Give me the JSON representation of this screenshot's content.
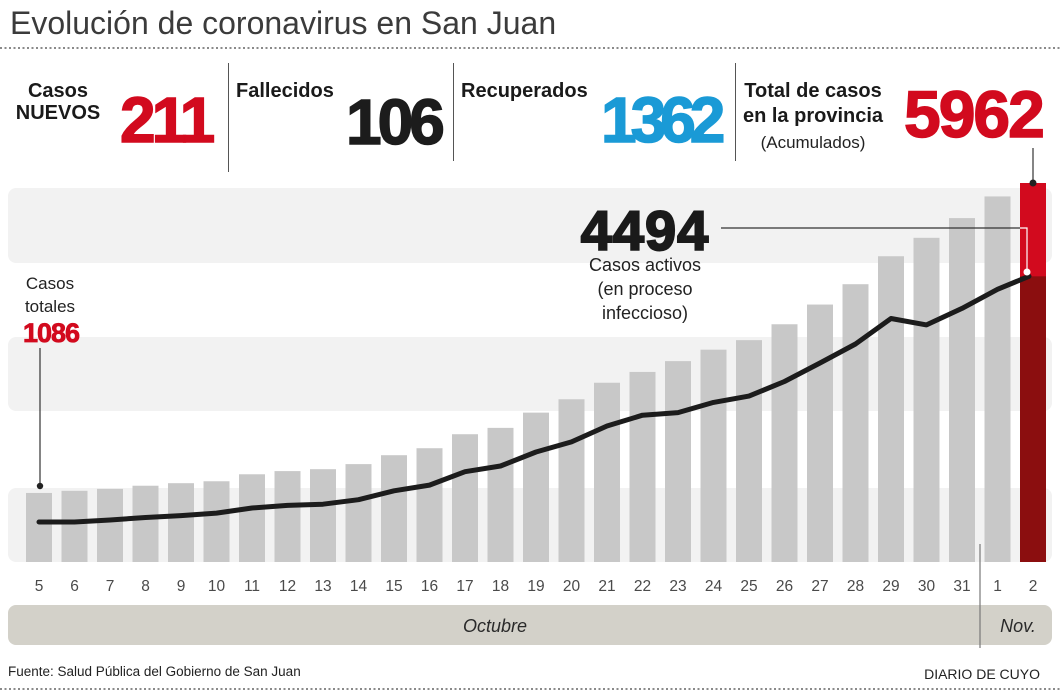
{
  "title": "Evolución de coronavirus en San Juan",
  "stats": {
    "nuevos": {
      "label_lines": [
        "Casos",
        "NUEVOS"
      ],
      "value": "211",
      "color": "#d20a1e"
    },
    "fallecidos": {
      "label": "Fallecidos",
      "value": "106",
      "color": "#1c1c1c"
    },
    "recuperados": {
      "label": "Recuperados",
      "value": "1362",
      "color": "#1a9ad6"
    },
    "total": {
      "label_lines": [
        "Total de casos",
        "en la provincia"
      ],
      "sublabel": "(Acumulados)",
      "value": "5962",
      "color": "#d20a1e"
    }
  },
  "annotations": {
    "casos_totales": {
      "label_lines": [
        "Casos",
        "totales"
      ],
      "value": "1086",
      "color": "#d20a1e"
    },
    "casos_activos": {
      "value": "4494",
      "label_lines": [
        "Casos activos",
        "(en proceso",
        "infeccioso)"
      ]
    }
  },
  "months": {
    "october": "Octubre",
    "november": "Nov."
  },
  "footer": {
    "source": "Fuente: Salud Pública del Gobierno de San Juan",
    "brand": "DIARIO DE CUYO"
  },
  "chart_data": {
    "type": "bar",
    "title": "Evolución de coronavirus en San Juan",
    "xlabel": "",
    "ylabel": "",
    "grid": false,
    "legend": "none",
    "categories": [
      "5",
      "6",
      "7",
      "8",
      "9",
      "10",
      "11",
      "12",
      "13",
      "14",
      "15",
      "16",
      "17",
      "18",
      "19",
      "20",
      "21",
      "22",
      "23",
      "24",
      "25",
      "26",
      "27",
      "28",
      "29",
      "30",
      "31",
      "1",
      "2"
    ],
    "category_groups": [
      {
        "label": "Octubre",
        "from": "5",
        "to": "31"
      },
      {
        "label": "Nov.",
        "from": "1",
        "to": "2"
      }
    ],
    "series": [
      {
        "name": "Casos totales (acumulados)",
        "type": "bar",
        "values": [
          1086,
          1120,
          1150,
          1200,
          1240,
          1270,
          1380,
          1430,
          1460,
          1540,
          1680,
          1790,
          2010,
          2110,
          2350,
          2560,
          2820,
          2990,
          3160,
          3340,
          3490,
          3740,
          4050,
          4370,
          4810,
          5100,
          5410,
          5751,
          5962
        ]
      },
      {
        "name": "Casos activos (en proceso infeccioso)",
        "type": "line",
        "values": [
          630,
          630,
          660,
          700,
          730,
          770,
          850,
          890,
          910,
          980,
          1120,
          1210,
          1420,
          1510,
          1730,
          1890,
          2140,
          2310,
          2350,
          2510,
          2610,
          2840,
          3130,
          3430,
          3830,
          3730,
          3990,
          4290,
          4494
        ]
      }
    ],
    "highlight_category": "2",
    "ylim": [
      0,
      5962
    ],
    "colors": {
      "bar": "#c8c8c8",
      "highlight_total": "#d20a1e",
      "highlight_active": "#8b0e0f",
      "line": "#1c1c1c",
      "band": "#f2f2f2",
      "month_bar": "#d3d1c9"
    }
  }
}
